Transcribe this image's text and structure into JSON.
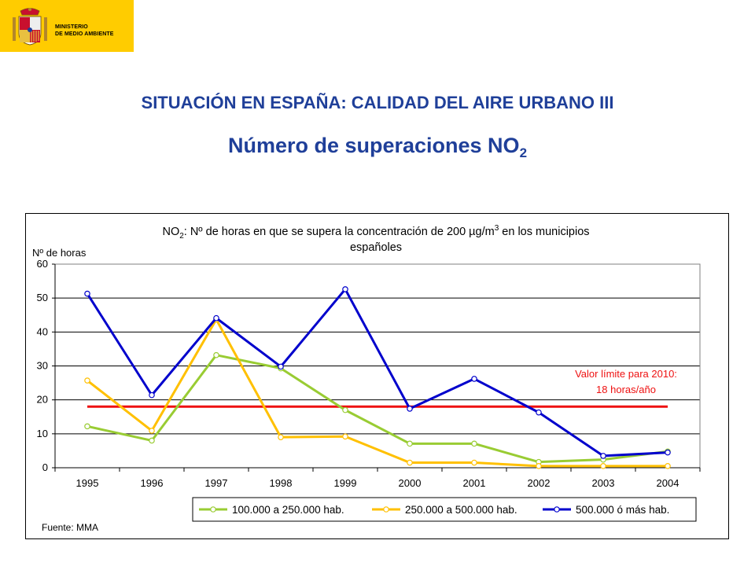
{
  "header": {
    "ministry_line1": "MINISTERIO",
    "ministry_line2": "DE MEDIO AMBIENTE"
  },
  "slide": {
    "title": "SITUACIÓN EN ESPAÑA: CALIDAD DEL AIRE URBANO III",
    "subtitle_main": "Número de superaciones NO",
    "subtitle_sub": "2"
  },
  "chart_data": {
    "type": "line",
    "title_prefix": "NO",
    "title_sub": "2",
    "title_mid": ": Nº de horas en que se supera la concentración de 200 µg/m",
    "title_sup": "3",
    "title_end": " en los municipios",
    "title_line2": "españoles",
    "ylabel": "Nº de horas",
    "ylim": [
      0,
      60
    ],
    "yticks": [
      "0",
      "10",
      "20",
      "30",
      "40",
      "50",
      "60"
    ],
    "categories": [
      "1995",
      "1996",
      "1997",
      "1998",
      "1999",
      "2000",
      "2001",
      "2002",
      "2003",
      "2004"
    ],
    "series": [
      {
        "name": "100.000 a 250.000 hab.",
        "color": "#99cc33",
        "values": [
          12.2,
          8,
          33.2,
          29.3,
          17,
          7.1,
          7.1,
          1.7,
          2.4,
          4.8
        ]
      },
      {
        "name": "250.000 a 500.000 hab.",
        "color": "#ffc000",
        "values": [
          25.7,
          10.9,
          43.7,
          9,
          9.2,
          1.5,
          1.5,
          0.5,
          0.5,
          0.5
        ]
      },
      {
        "name": "500.000 ó más hab.",
        "color": "#0000cc",
        "values": [
          51.3,
          21.4,
          44.1,
          29.8,
          52.6,
          17.4,
          26.2,
          16.3,
          3.5,
          4.5
        ]
      }
    ],
    "limit_line": {
      "value": 18,
      "color": "#ee1111",
      "label_line1": "Valor límite para 2010:",
      "label_line2": "18 horas/año"
    },
    "source": "Fuente: MMA",
    "grid": true,
    "legend_position": "bottom-right"
  }
}
